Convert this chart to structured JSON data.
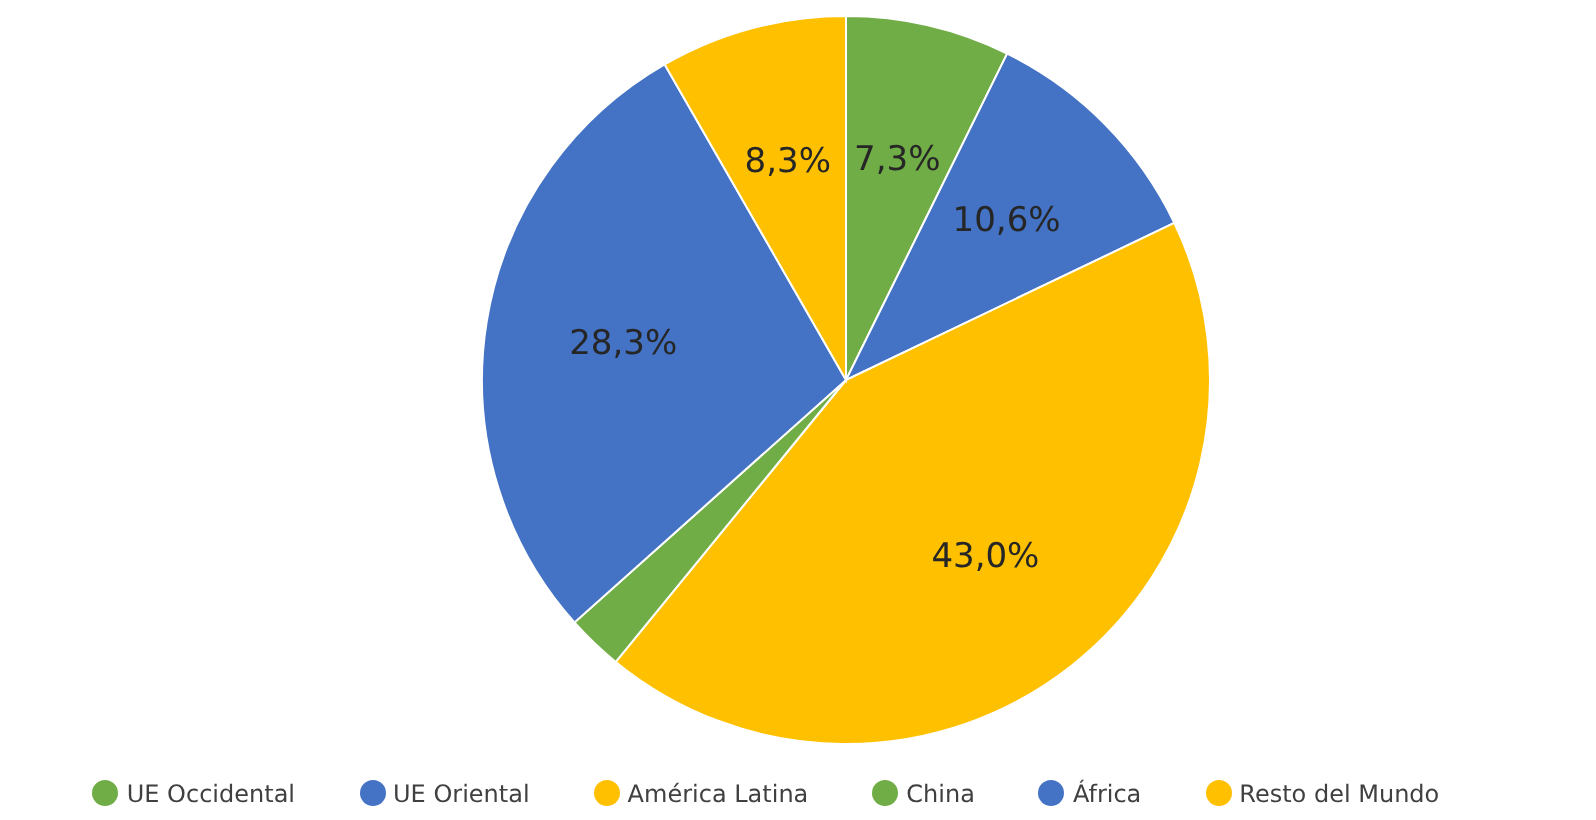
{
  "chart_data": {
    "type": "pie",
    "categories": [
      "UE Occidental",
      "UE Oriental",
      "América Latina",
      "China",
      "África",
      "Resto del Mundo"
    ],
    "values": [
      7.3,
      10.6,
      43.0,
      2.5,
      28.3,
      8.3
    ],
    "colors": [
      "#70ad47",
      "#4472c4",
      "#ffc000",
      "#70ad47",
      "#4472c4",
      "#ffc000"
    ],
    "value_labels": [
      "7,3%",
      "10,6%",
      "43,0%",
      null,
      "28,3%",
      "8,3%"
    ],
    "legend": "bottom"
  }
}
